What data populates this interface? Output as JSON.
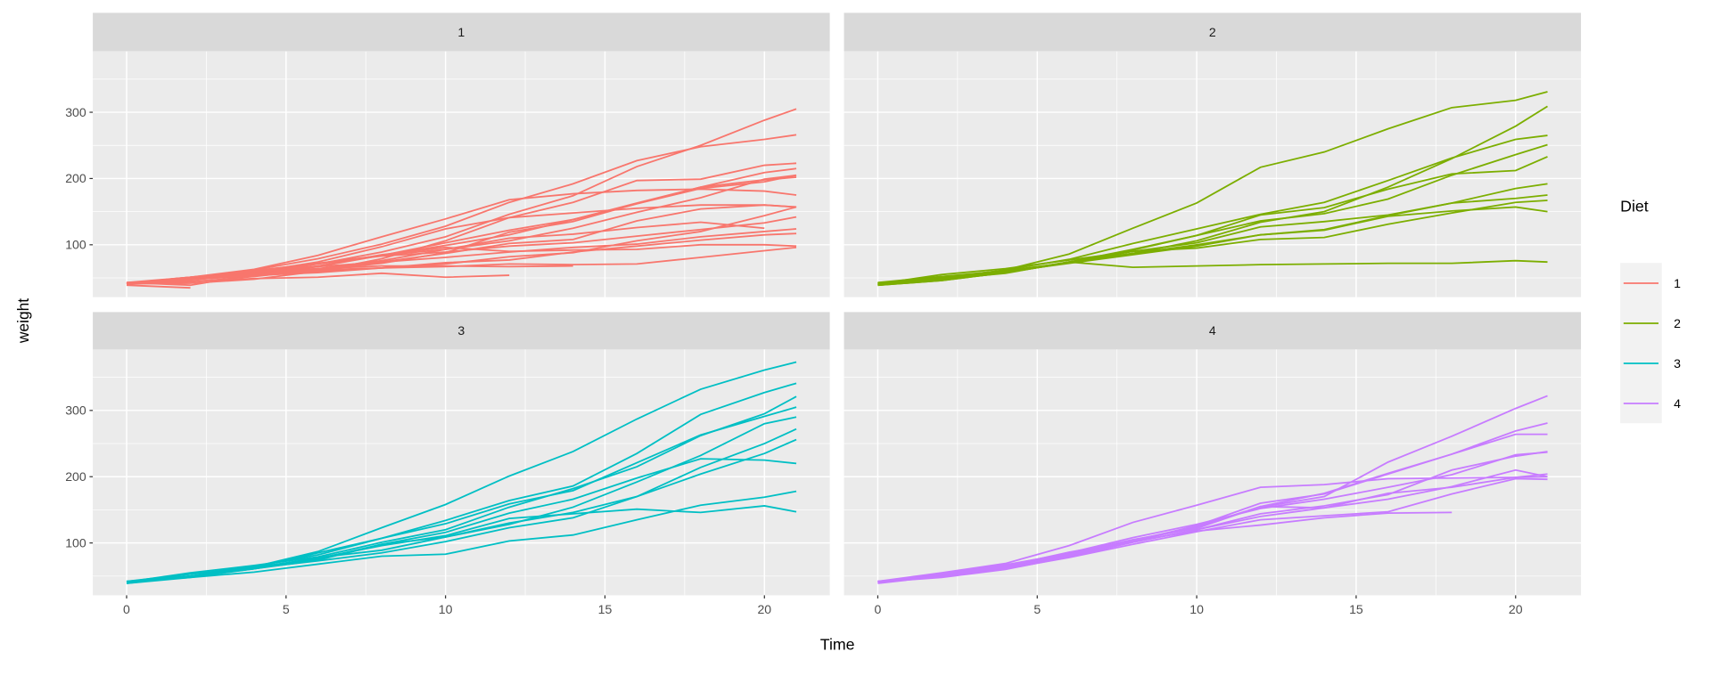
{
  "chart_data": {
    "type": "line",
    "title": "",
    "xlabel": "Time",
    "ylabel": "weight",
    "xlim": [
      -1.06,
      22.05
    ],
    "ylim": [
      21,
      392
    ],
    "x_ticks": [
      0,
      5,
      10,
      15,
      20
    ],
    "y_ticks": [
      100,
      200,
      300
    ],
    "grid": true,
    "legend": {
      "title": "Diet",
      "position": "right",
      "entries": [
        "1",
        "2",
        "3",
        "4"
      ]
    },
    "colors": {
      "1": "#F8766D",
      "2": "#7CAE00",
      "3": "#00BFC4",
      "4": "#C77CFF"
    },
    "times": [
      0,
      2,
      4,
      6,
      8,
      10,
      12,
      14,
      16,
      18,
      20,
      21
    ],
    "panels": [
      {
        "diet": "1",
        "chicks": [
          [
            42,
            51,
            59,
            64,
            76,
            93,
            106,
            125,
            149,
            171,
            199,
            205
          ],
          [
            40,
            49,
            58,
            72,
            84,
            103,
            122,
            138,
            162,
            187,
            209,
            215
          ],
          [
            43,
            39,
            55,
            67,
            84,
            99,
            115,
            138,
            163,
            187,
            198,
            202
          ],
          [
            42,
            49,
            56,
            67,
            74,
            87,
            102,
            108,
            136,
            154,
            160,
            157
          ],
          [
            41,
            42,
            48,
            60,
            79,
            106,
            141,
            164,
            197,
            199,
            220,
            223
          ],
          [
            41,
            49,
            59,
            74,
            97,
            124,
            141,
            148,
            155,
            160,
            160,
            157
          ],
          [
            41,
            49,
            57,
            71,
            89,
            112,
            146,
            174,
            218,
            250,
            288,
            305
          ],
          [
            42,
            50,
            61,
            71,
            84,
            93,
            110,
            116,
            126,
            134,
            125
          ],
          [
            42,
            51,
            59,
            68,
            85,
            96,
            90,
            92,
            93,
            100,
            100,
            98
          ],
          [
            41,
            44,
            52,
            63,
            74,
            81,
            89,
            96,
            101,
            112,
            120,
            124
          ],
          [
            43,
            51,
            63,
            84,
            112,
            139,
            168,
            177,
            182,
            184,
            181,
            175
          ],
          [
            41,
            49,
            56,
            62,
            72,
            88,
            119,
            135,
            162,
            185,
            195,
            205
          ],
          [
            41,
            48,
            53,
            60,
            65,
            67,
            71,
            70,
            71,
            81,
            91,
            96
          ],
          [
            41,
            49,
            62,
            79,
            101,
            128,
            164,
            192,
            227,
            248,
            259,
            266
          ],
          [
            41,
            49,
            56,
            64,
            68,
            68,
            67,
            68
          ],
          [
            41,
            45,
            49,
            51,
            57,
            51,
            54
          ],
          [
            42,
            51,
            61,
            72,
            83,
            89,
            98,
            103,
            113,
            123,
            133,
            142
          ],
          [
            39,
            35
          ],
          [
            43,
            48,
            55,
            62,
            65,
            71,
            82,
            88,
            106,
            120,
            144,
            157
          ],
          [
            41,
            47,
            54,
            58,
            65,
            73,
            77,
            89,
            98,
            107,
            115,
            117
          ]
        ]
      },
      {
        "diet": "2",
        "chicks": [
          [
            40,
            50,
            62,
            86,
            125,
            163,
            217,
            240,
            275,
            307,
            318,
            331
          ],
          [
            41,
            55,
            64,
            77,
            90,
            95,
            108,
            111,
            131,
            148,
            164,
            167
          ],
          [
            43,
            52,
            61,
            73,
            90,
            103,
            127,
            135,
            145,
            163,
            170,
            175
          ],
          [
            42,
            52,
            58,
            74,
            66,
            68,
            70,
            71,
            72,
            72,
            76,
            74
          ],
          [
            40,
            49,
            62,
            78,
            102,
            124,
            146,
            164,
            197,
            231,
            259,
            265
          ],
          [
            42,
            48,
            57,
            74,
            93,
            114,
            136,
            147,
            169,
            205,
            236,
            251
          ],
          [
            39,
            46,
            58,
            73,
            87,
            100,
            115,
            123,
            144,
            163,
            185,
            192
          ],
          [
            39,
            46,
            58,
            73,
            92,
            114,
            145,
            156,
            184,
            207,
            212,
            233
          ],
          [
            39,
            48,
            59,
            74,
            87,
            106,
            134,
            150,
            187,
            230,
            279,
            309
          ],
          [
            42,
            48,
            59,
            72,
            85,
            98,
            115,
            122,
            143,
            151,
            157,
            150
          ]
        ]
      },
      {
        "diet": "3",
        "chicks": [
          [
            42,
            53,
            62,
            73,
            85,
            102,
            123,
            138,
            170,
            204,
            235,
            256
          ],
          [
            41,
            49,
            65,
            82,
            107,
            129,
            159,
            179,
            221,
            263,
            291,
            305
          ],
          [
            39,
            50,
            63,
            77,
            96,
            111,
            137,
            144,
            151,
            146,
            156,
            147
          ],
          [
            41,
            49,
            63,
            85,
            107,
            134,
            164,
            186,
            235,
            294,
            327,
            341
          ],
          [
            41,
            53,
            64,
            87,
            123,
            158,
            201,
            238,
            287,
            332,
            361,
            373
          ],
          [
            39,
            48,
            61,
            76,
            98,
            116,
            145,
            166,
            198,
            227,
            225,
            220
          ],
          [
            41,
            48,
            56,
            68,
            80,
            83,
            103,
            112,
            135,
            157,
            169,
            178
          ],
          [
            41,
            49,
            61,
            74,
            98,
            109,
            128,
            154,
            192,
            232,
            280,
            290
          ],
          [
            42,
            50,
            61,
            78,
            89,
            109,
            130,
            146,
            170,
            214,
            250,
            272
          ],
          [
            41,
            55,
            66,
            79,
            101,
            120,
            154,
            182,
            215,
            262,
            295,
            321
          ]
        ]
      },
      {
        "diet": "4",
        "chicks": [
          [
            42,
            51,
            66,
            85,
            103,
            124,
            155,
            153,
            175,
            184,
            199,
            204
          ],
          [
            42,
            49,
            63,
            84,
            103,
            126,
            160,
            174,
            204,
            234,
            269,
            281
          ],
          [
            42,
            55,
            69,
            96,
            131,
            157,
            184,
            188,
            197,
            198,
            199,
            200
          ],
          [
            42,
            51,
            65,
            86,
            103,
            118,
            127,
            138,
            145,
            146
          ],
          [
            41,
            50,
            61,
            78,
            98,
            117,
            135,
            141,
            147,
            174,
            197,
            196
          ],
          [
            40,
            52,
            62,
            82,
            101,
            120,
            144,
            156,
            173,
            210,
            231,
            238
          ],
          [
            41,
            48,
            60,
            79,
            101,
            120,
            140,
            153,
            166,
            185,
            210,
            200
          ],
          [
            39,
            50,
            62,
            80,
            104,
            125,
            154,
            170,
            222,
            261,
            303,
            322
          ],
          [
            40,
            53,
            64,
            85,
            108,
            128,
            152,
            166,
            184,
            203,
            233,
            237
          ],
          [
            41,
            54,
            67,
            84,
            105,
            122,
            155,
            175,
            205,
            234,
            264,
            264
          ]
        ]
      }
    ]
  }
}
